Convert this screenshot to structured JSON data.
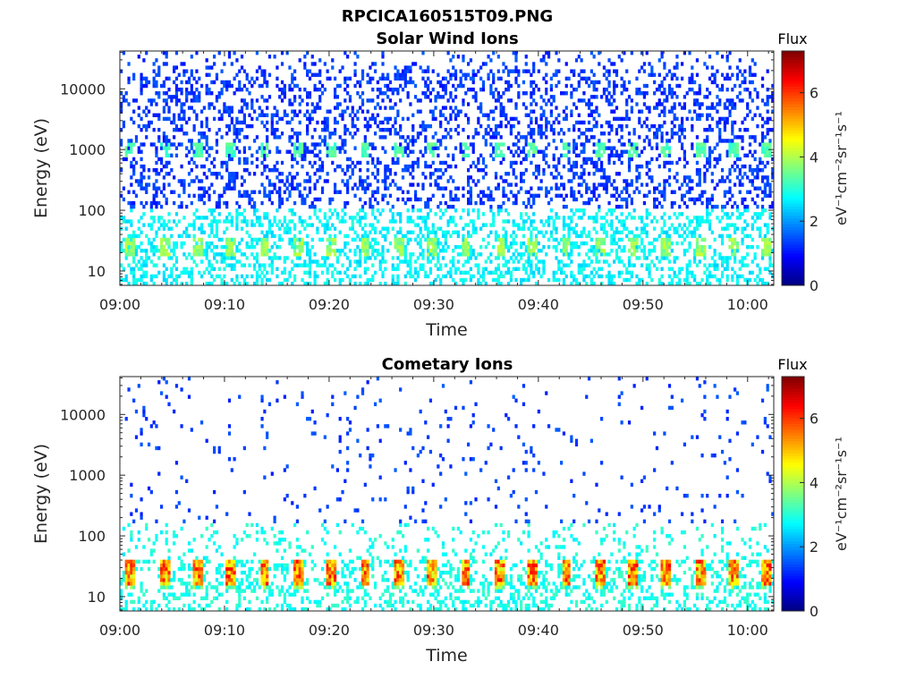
{
  "page_title": "RPCICA160515T09.PNG",
  "colormap": [
    "#00007f",
    "#0000ff",
    "#007fff",
    "#00ffff",
    "#7fff7f",
    "#ffff00",
    "#ff7f00",
    "#ff0000",
    "#7f0000"
  ],
  "chart_data": [
    {
      "type": "heatmap",
      "title": "Solar Wind Ions",
      "xlabel": "Time",
      "ylabel": "Energy (eV)",
      "x_ticks": [
        "09:00",
        "09:10",
        "09:20",
        "09:30",
        "09:40",
        "09:50",
        "10:00"
      ],
      "x_range_minutes": [
        0,
        62.5
      ],
      "y_scale": "log",
      "y_ticks": [
        "10",
        "100",
        "1000",
        "10000"
      ],
      "y_tick_values": [
        10,
        100,
        1000,
        10000
      ],
      "y_range": [
        5.8,
        42000
      ],
      "colorbar": {
        "label": "Flux",
        "units": "eV⁻¹cm⁻²sr⁻¹s⁻¹",
        "ticks": [
          "0",
          "2",
          "4",
          "6"
        ],
        "range": [
          0,
          7.3
        ]
      },
      "features": [
        {
          "description": "sparse background counts",
          "energy_range_eV": [
            6,
            40000
          ],
          "flux": 1.2
        },
        {
          "description": "periodic bursts near 1 keV",
          "energy_eV": 950,
          "flux": 3.2,
          "period_min": 3.2
        },
        {
          "description": "periodic bursts low energy",
          "energy_eV": 25,
          "flux": 3.6,
          "period_min": 3.2
        }
      ]
    },
    {
      "type": "heatmap",
      "title": "Cometary Ions",
      "xlabel": "Time",
      "ylabel": "Energy (eV)",
      "x_ticks": [
        "09:00",
        "09:10",
        "09:20",
        "09:30",
        "09:40",
        "09:50",
        "10:00"
      ],
      "x_range_minutes": [
        0,
        62.5
      ],
      "y_scale": "log",
      "y_ticks": [
        "10",
        "100",
        "1000",
        "10000"
      ],
      "y_tick_values": [
        10,
        100,
        1000,
        10000
      ],
      "y_range": [
        5.8,
        42000
      ],
      "colorbar": {
        "label": "Flux",
        "units": "eV⁻¹cm⁻²sr⁻¹s⁻¹",
        "ticks": [
          "0",
          "2",
          "4",
          "6"
        ],
        "range": [
          0,
          7.3
        ]
      },
      "features": [
        {
          "description": "sparse background counts",
          "energy_range_eV": [
            6,
            40000
          ],
          "flux": 1.2
        },
        {
          "description": "periodic intense bursts",
          "energy_eV": 25,
          "flux": 6.0,
          "period_min": 3.2
        }
      ]
    }
  ]
}
